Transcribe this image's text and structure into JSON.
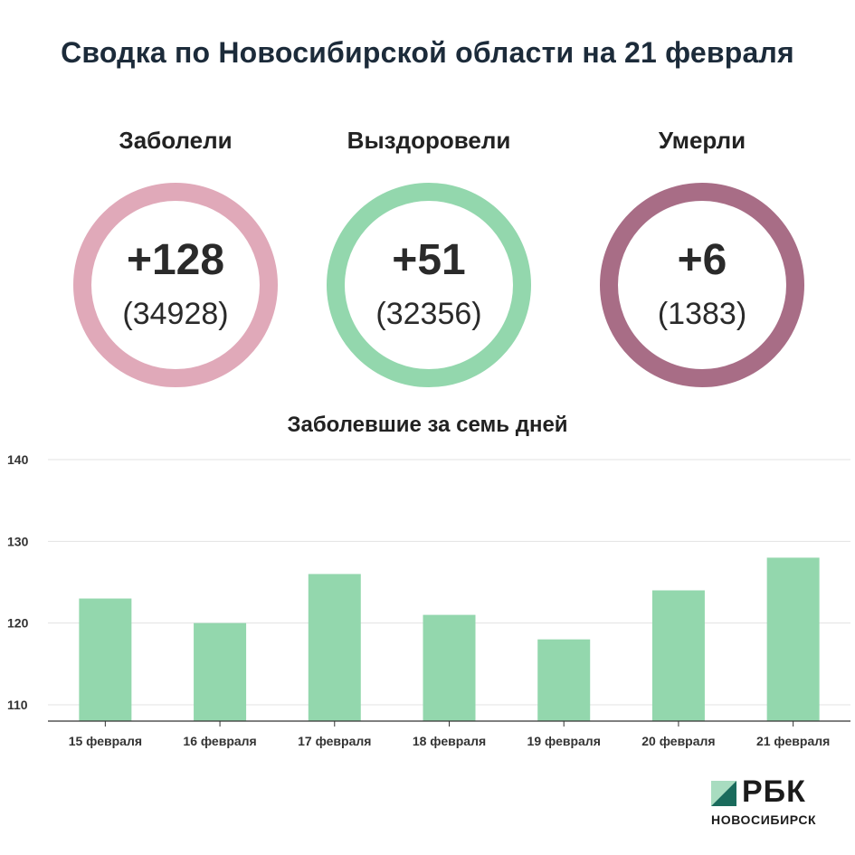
{
  "header": {
    "title": "Сводка по Новосибирской области на 21 февраля"
  },
  "stats": [
    {
      "label": "Заболели",
      "delta": "+128",
      "total": "(34928)",
      "color": "#e0a9b9"
    },
    {
      "label": "Выздоровели",
      "delta": "+51",
      "total": "(32356)",
      "color": "#93d7ad"
    },
    {
      "label": "Умерли",
      "delta": "+6",
      "total": "(1383)",
      "color": "#a86d86"
    }
  ],
  "chart_data": {
    "type": "bar",
    "title": "Заболевшие за семь дней",
    "categories": [
      "15 февраля",
      "16 февраля",
      "17 февраля",
      "18 февраля",
      "19 февраля",
      "20 февраля",
      "21 февраля"
    ],
    "values": [
      123,
      120,
      126,
      121,
      118,
      124,
      128
    ],
    "ylim": [
      108,
      140
    ],
    "yticks": [
      110,
      120,
      130,
      140
    ],
    "grid": true,
    "bar_color": "#93d7ad"
  },
  "logo": {
    "text": "РБК",
    "subtext": "НОВОСИБИРСК",
    "mark_light": "#a8dcc0",
    "mark_dark": "#1a6b5c"
  }
}
